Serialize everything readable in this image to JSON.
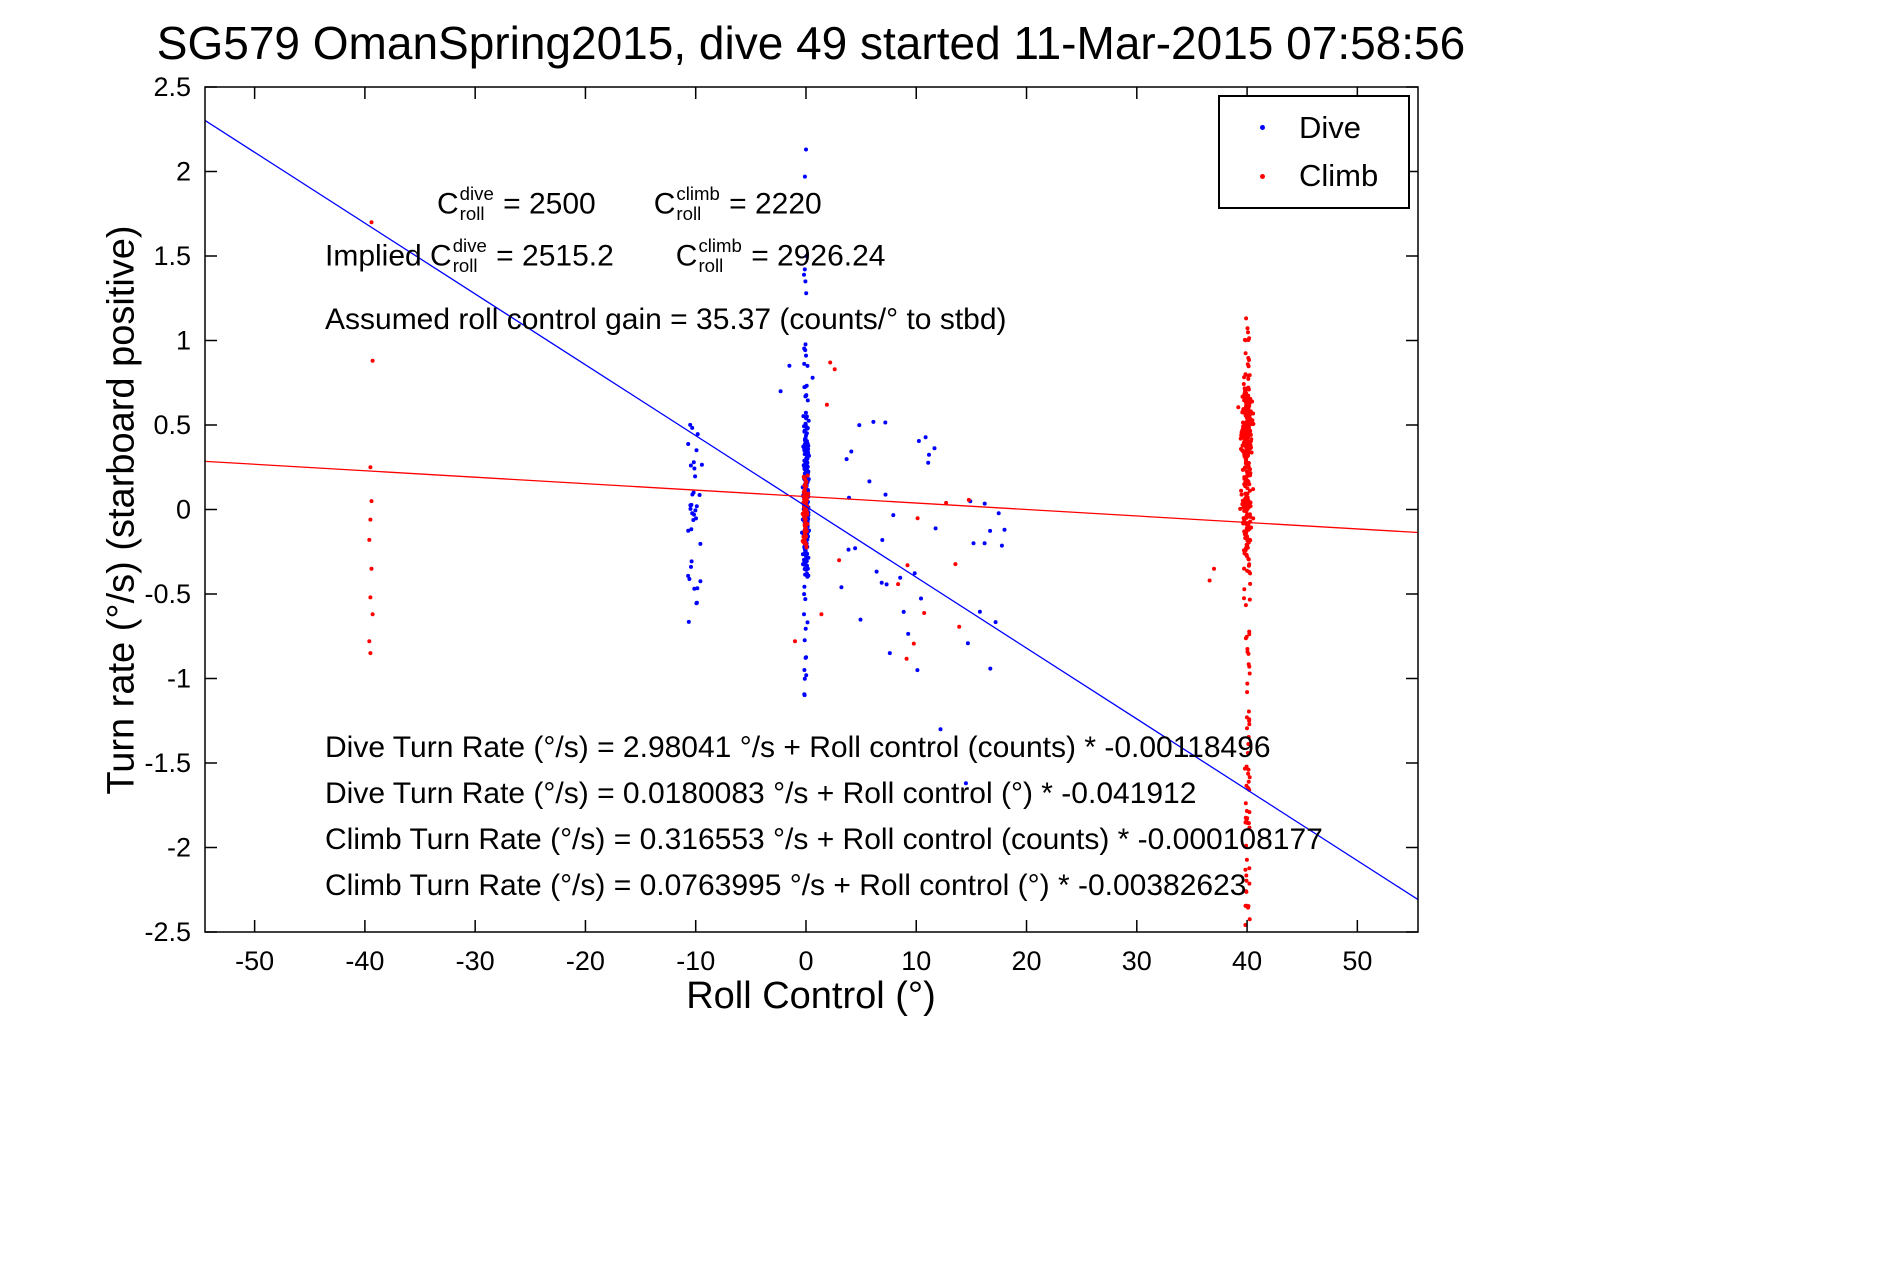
{
  "title": "SG579 OmanSpring2015, dive 49 started 11-Mar-2015 07:58:56",
  "annotations": {
    "row1": {
      "g1": {
        "base": "C",
        "sup": "dive",
        "sub": "roll",
        "rest": " = 2500"
      },
      "g2": {
        "base": "C",
        "sup": "climb",
        "sub": "roll",
        "rest": " = 2220"
      }
    },
    "row2": {
      "prefix": "Implied ",
      "g1": {
        "base": "C",
        "sup": "dive",
        "sub": "roll",
        "rest": " = 2515.2"
      },
      "g2": {
        "base": "C",
        "sup": "climb",
        "sub": "roll",
        "rest": " = 2926.24"
      }
    },
    "gain_line": "Assumed roll control gain = 35.37 (counts/° to stbd)",
    "eq_lines": [
      "Dive Turn Rate (°/s) = 2.98041 °/s + Roll control (counts) * -0.00118496",
      "Dive Turn Rate (°/s) = 0.0180083 °/s + Roll control (°) * -0.041912",
      "Climb Turn Rate (°/s) = 0.316553 °/s + Roll control (counts) * -0.000108177",
      "Climb Turn Rate (°/s) = 0.0763995 °/s + Roll control (°) * -0.00382623"
    ]
  },
  "chart_data": {
    "type": "scatter",
    "title": "SG579 OmanSpring2015, dive 49 started 11-Mar-2015 07:58:56",
    "xlabel": "Roll Control (°)",
    "ylabel": "Turn rate (°/s) (starboard positive)",
    "xlim": [
      -54.5,
      55.5
    ],
    "ylim": [
      -2.5,
      2.5
    ],
    "xticks": [
      -50,
      -40,
      -30,
      -20,
      -10,
      0,
      10,
      20,
      30,
      40,
      50
    ],
    "xtick_labels": [
      "-50",
      "-40",
      "-30",
      "-20",
      "-10",
      "0",
      "10",
      "20",
      "30",
      "40",
      "50"
    ],
    "yticks": [
      -2.5,
      -2,
      -1.5,
      -1,
      -0.5,
      0,
      0.5,
      1,
      1.5,
      2,
      2.5
    ],
    "ytick_labels": [
      "-2.5",
      "-2",
      "-1.5",
      "-1",
      "-0.5",
      "0",
      "0.5",
      "1",
      "1.5",
      "2",
      "2.5"
    ],
    "grid": false,
    "legend_position": "top-right",
    "marker_radius": 2,
    "axis_color": "#000000",
    "series": [
      {
        "name": "Dive",
        "color": "#0000ff",
        "fit": {
          "intercept": 0.0180083,
          "slope": -0.041912
        },
        "clusters": [
          {
            "type": "gauss",
            "cx": 0,
            "sx": 0.12,
            "cy": 0.12,
            "sy": 0.24,
            "n": 240
          },
          {
            "type": "gauss",
            "cx": 0,
            "sx": 0.1,
            "cy": -0.2,
            "sy": 0.12,
            "n": 50
          },
          {
            "type": "uniform",
            "x0": -0.2,
            "x1": 0.15,
            "y0": -1.1,
            "y1": -0.45,
            "n": 14
          },
          {
            "type": "uniform",
            "x0": -0.2,
            "x1": 0.15,
            "y0": 0.66,
            "y1": 1.45,
            "n": 9
          },
          {
            "type": "gauss",
            "cx": -10.1,
            "sx": 0.4,
            "cy": 0.2,
            "sy": 0.28,
            "n": 26
          },
          {
            "type": "uniform",
            "x0": -10.7,
            "x1": -9.6,
            "y0": -0.72,
            "y1": -0.1,
            "n": 9
          },
          {
            "type": "uniform",
            "x0": 3,
            "x1": 12,
            "y0": -0.75,
            "y1": 0.55,
            "n": 26
          },
          {
            "type": "uniform",
            "x0": 9,
            "x1": 18,
            "y0": -0.95,
            "y1": 0.3,
            "n": 12
          }
        ],
        "points": [
          [
            0,
            2.13
          ],
          [
            -0.1,
            1.97
          ],
          [
            0.05,
            1.5
          ],
          [
            -0.05,
            1.35
          ],
          [
            0.02,
            1.28
          ],
          [
            -1.5,
            0.85
          ],
          [
            0.6,
            0.78
          ],
          [
            14.5,
            -1.62
          ],
          [
            12.2,
            -1.3
          ],
          [
            10.1,
            -0.95
          ],
          [
            7.6,
            -0.85
          ],
          [
            16.2,
            -0.2
          ],
          [
            18,
            -0.12
          ],
          [
            -2.3,
            0.7
          ]
        ]
      },
      {
        "name": "Climb",
        "color": "#ff0000",
        "fit": {
          "intercept": 0.0763995,
          "slope": -0.00382623
        },
        "clusters": [
          {
            "type": "gauss",
            "cx": 40,
            "sx": 0.22,
            "cy": 0.5,
            "sy": 0.16,
            "n": 200
          },
          {
            "type": "gauss",
            "cx": 40,
            "sx": 0.22,
            "cy": -0.02,
            "sy": 0.13,
            "n": 70
          },
          {
            "type": "uniform",
            "x0": 39.7,
            "x1": 40.3,
            "y0": -0.6,
            "y1": 0.25,
            "n": 45
          },
          {
            "type": "uniform",
            "x0": 39.8,
            "x1": 40.25,
            "y0": -2.5,
            "y1": -0.6,
            "n": 55
          },
          {
            "type": "uniform",
            "x0": 39.8,
            "x1": 40.2,
            "y0": 0.78,
            "y1": 1.15,
            "n": 12
          },
          {
            "type": "gauss",
            "cx": -0.05,
            "sx": 0.1,
            "cy": -0.03,
            "sy": 0.1,
            "n": 90
          },
          {
            "type": "uniform",
            "x0": 8,
            "x1": 16,
            "y0": -0.9,
            "y1": 0.15,
            "n": 10
          }
        ],
        "points": [
          [
            2.2,
            0.87
          ],
          [
            2.6,
            0.83
          ],
          [
            1.9,
            0.62
          ],
          [
            -39.4,
            1.7
          ],
          [
            -39.3,
            0.88
          ],
          [
            -39.5,
            0.25
          ],
          [
            -39.4,
            0.05
          ],
          [
            -39.5,
            -0.06
          ],
          [
            -39.6,
            -0.18
          ],
          [
            -39.4,
            -0.35
          ],
          [
            -39.5,
            -0.52
          ],
          [
            -39.3,
            -0.62
          ],
          [
            -39.6,
            -0.78
          ],
          [
            -39.5,
            -0.85
          ],
          [
            37,
            -0.35
          ],
          [
            36.6,
            -0.42
          ],
          [
            -1,
            -0.78
          ],
          [
            1.4,
            -0.62
          ],
          [
            3,
            -0.3
          ]
        ]
      }
    ]
  }
}
